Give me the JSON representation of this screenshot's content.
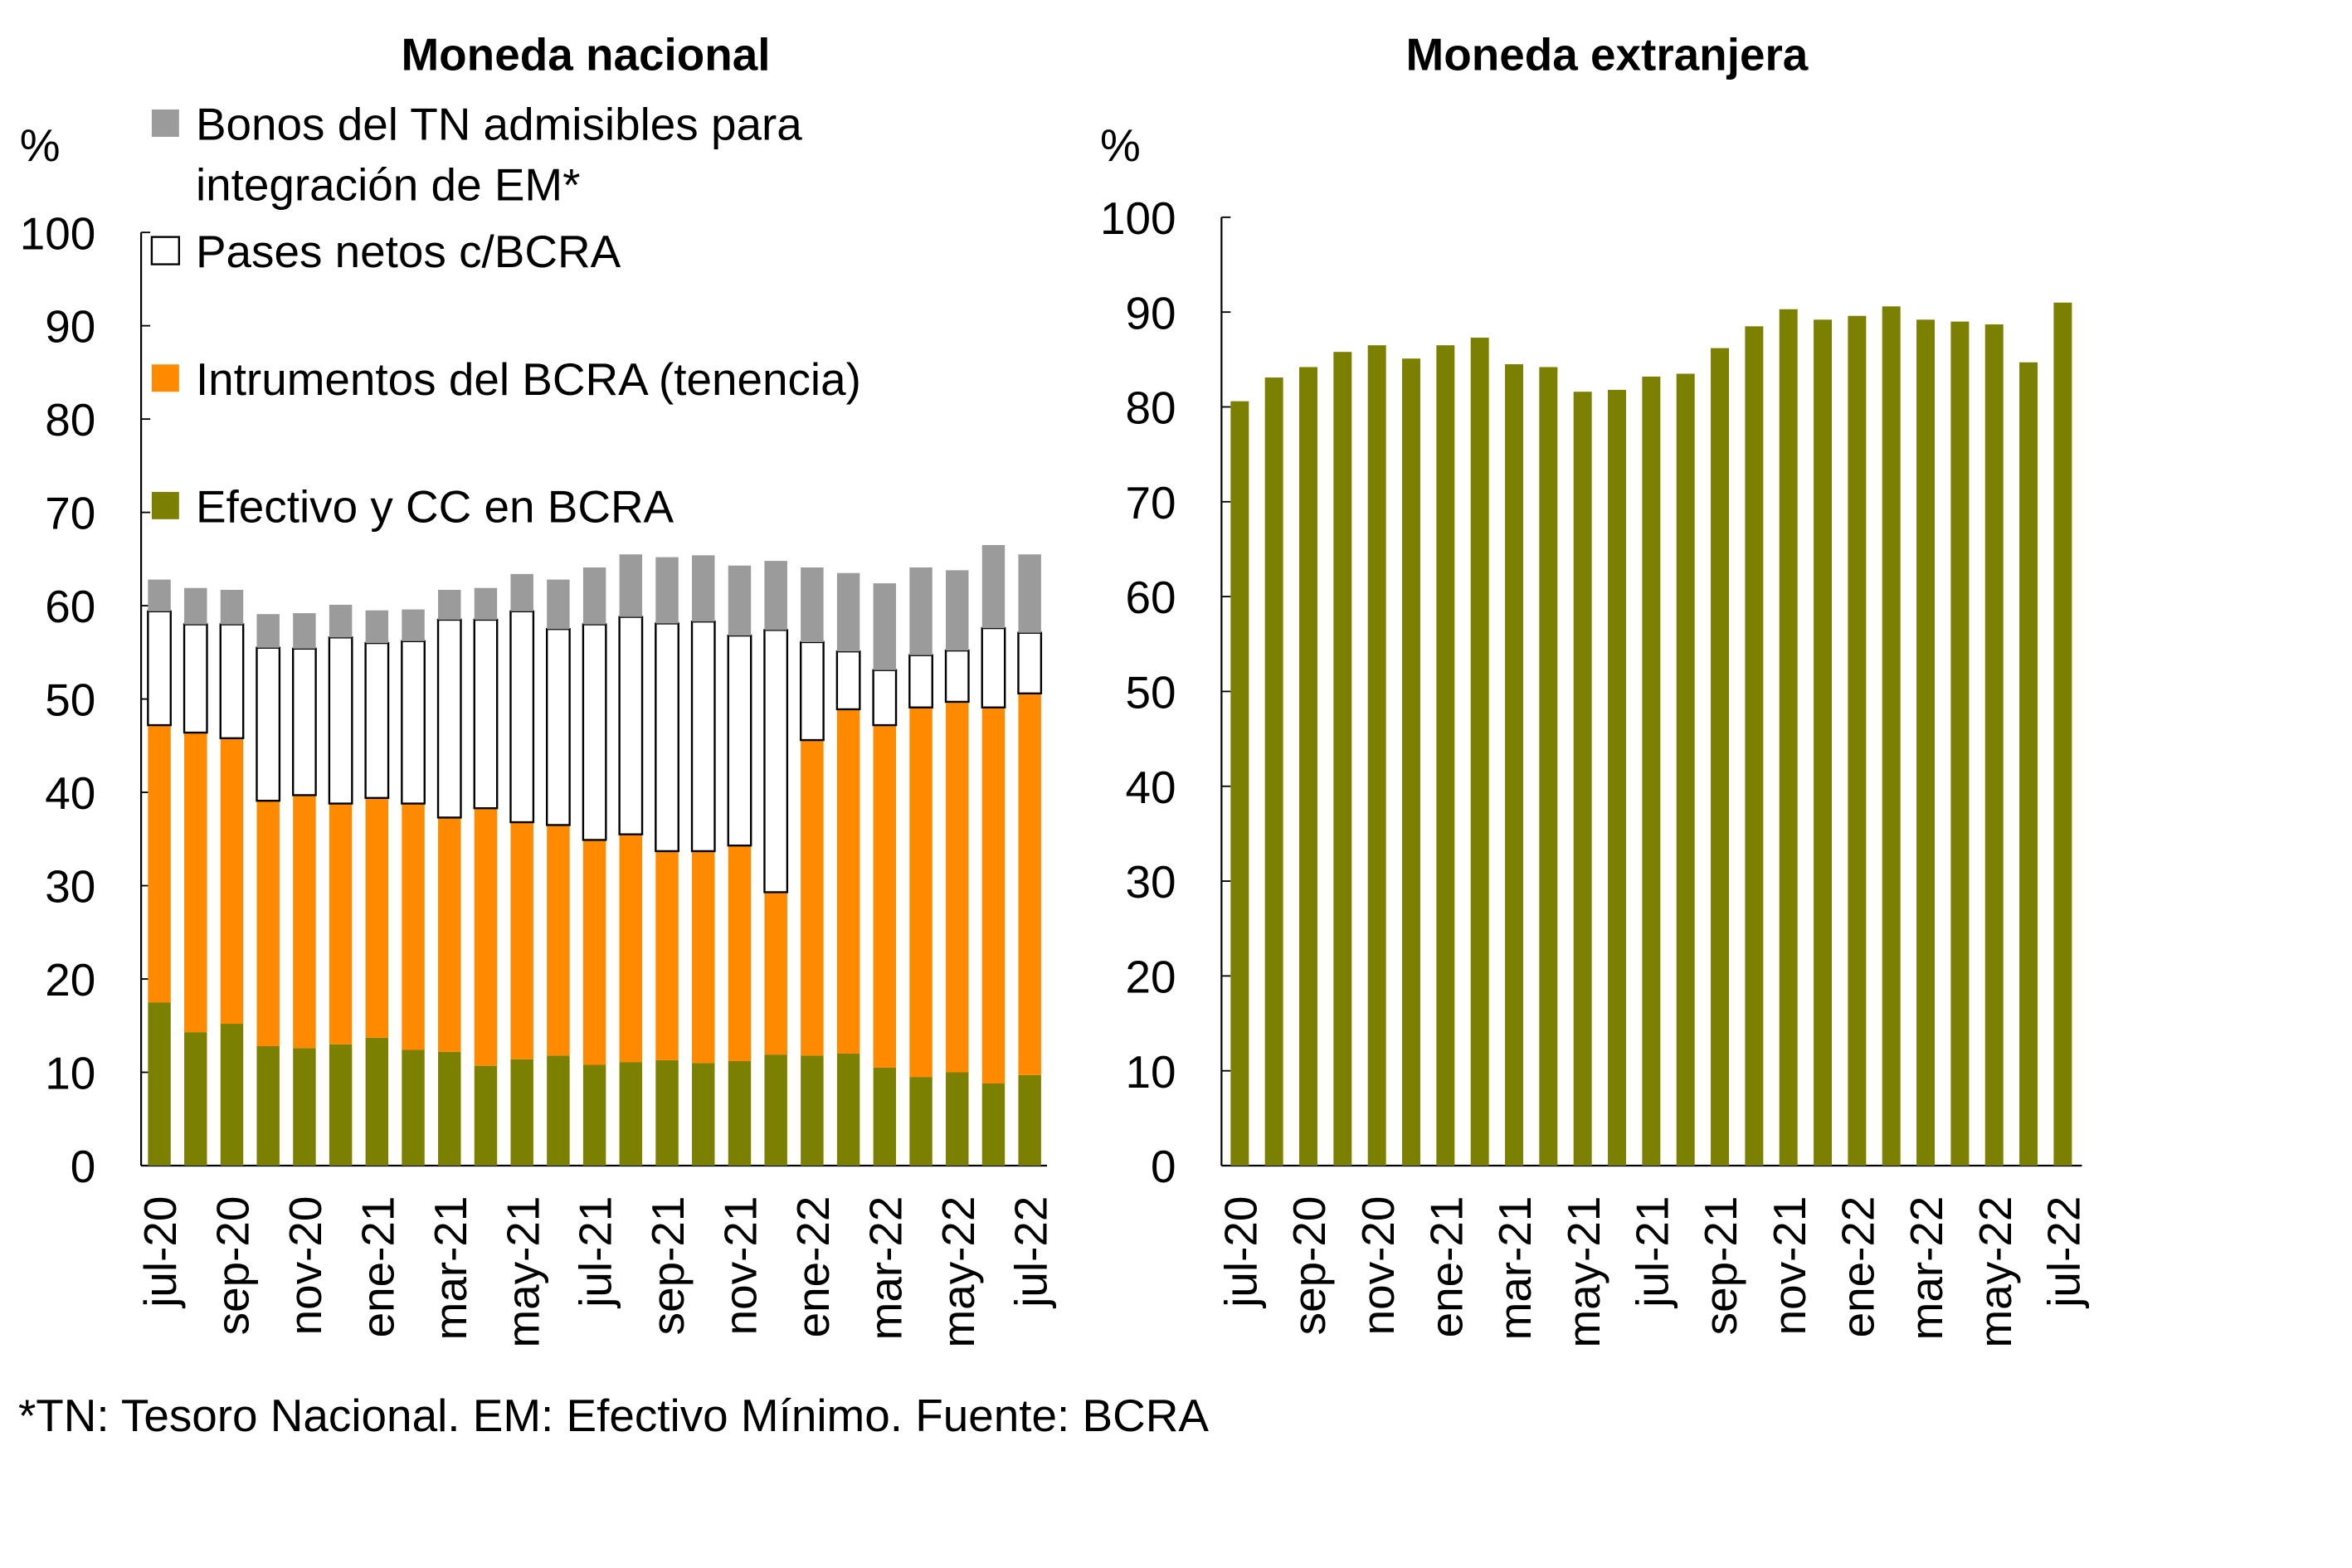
{
  "colors": {
    "efectivo": "#7b8000",
    "instrumentos": "#ff8a00",
    "pases": "#ffffff",
    "bonos": "#9b9b9b"
  },
  "chart_data": [
    {
      "type": "bar",
      "stacked": true,
      "title": "Moneda nacional",
      "ylabel": "%",
      "ylim": [
        0,
        100
      ],
      "yticks": [
        0,
        10,
        20,
        30,
        40,
        50,
        60,
        70,
        80,
        90,
        100
      ],
      "categories": [
        "jul-20",
        "ago-20",
        "sep-20",
        "oct-20",
        "nov-20",
        "dic-20",
        "ene-21",
        "feb-21",
        "mar-21",
        "abr-21",
        "may-21",
        "jun-21",
        "jul-21",
        "ago-21",
        "sep-21",
        "oct-21",
        "nov-21",
        "dic-21",
        "ene-22",
        "feb-22",
        "mar-22",
        "abr-22",
        "may-22",
        "jun-22",
        "jul-22"
      ],
      "xtick_labels": [
        "jul-20",
        "sep-20",
        "nov-20",
        "ene-21",
        "mar-21",
        "may-21",
        "jul-21",
        "sep-21",
        "nov-21",
        "ene-22",
        "mar-22",
        "may-22",
        "jul-22"
      ],
      "legend": "top-left",
      "series": [
        {
          "name": "Efectivo y CC en BCRA",
          "color_key": "efectivo",
          "values": [
            17.5,
            14.3,
            15.2,
            12.8,
            12.6,
            13.0,
            13.7,
            12.4,
            12.2,
            10.7,
            11.4,
            11.8,
            10.8,
            11.1,
            11.3,
            11.0,
            11.2,
            11.9,
            11.8,
            12.0,
            10.5,
            9.5,
            10.0,
            8.8,
            9.7
          ]
        },
        {
          "name": "Intrumentos del BCRA (tenencia)",
          "color_key": "instrumentos",
          "values": [
            29.7,
            32.1,
            30.6,
            26.3,
            27.1,
            25.8,
            25.7,
            26.4,
            25.1,
            27.6,
            25.4,
            24.7,
            24.1,
            24.4,
            22.4,
            22.7,
            23.1,
            17.4,
            33.8,
            36.9,
            36.7,
            39.6,
            39.7,
            40.3,
            40.9
          ]
        },
        {
          "name": "Pases netos c/BCRA",
          "color_key": "pases",
          "values": [
            12.2,
            11.6,
            12.2,
            16.4,
            15.7,
            17.8,
            16.6,
            17.4,
            21.2,
            20.2,
            22.6,
            21.0,
            23.1,
            23.3,
            24.4,
            24.6,
            22.5,
            28.1,
            10.5,
            6.2,
            5.9,
            5.6,
            5.5,
            8.5,
            6.5
          ]
        },
        {
          "name": "Bonos del TN admisibles para integración de EM*",
          "name_lines": [
            "Bonos del TN admisibles para",
            "integración de EM*"
          ],
          "color_key": "bonos",
          "values": [
            3.4,
            3.9,
            3.7,
            3.6,
            3.8,
            3.5,
            3.5,
            3.4,
            3.2,
            3.4,
            4.0,
            5.3,
            6.1,
            6.7,
            7.1,
            7.1,
            7.5,
            7.4,
            8.0,
            8.4,
            9.3,
            9.4,
            8.6,
            8.9,
            8.4
          ]
        }
      ]
    },
    {
      "type": "bar",
      "title": "Moneda extranjera",
      "ylabel": "%",
      "ylim": [
        0,
        100
      ],
      "yticks": [
        0,
        10,
        20,
        30,
        40,
        50,
        60,
        70,
        80,
        90,
        100
      ],
      "categories": [
        "jul-20",
        "ago-20",
        "sep-20",
        "oct-20",
        "nov-20",
        "dic-20",
        "ene-21",
        "feb-21",
        "mar-21",
        "abr-21",
        "may-21",
        "jun-21",
        "jul-21",
        "ago-21",
        "sep-21",
        "oct-21",
        "nov-21",
        "dic-21",
        "ene-22",
        "feb-22",
        "mar-22",
        "abr-22",
        "may-22",
        "jun-22",
        "jul-22"
      ],
      "xtick_labels": [
        "jul-20",
        "sep-20",
        "nov-20",
        "ene-21",
        "mar-21",
        "may-21",
        "jul-21",
        "sep-21",
        "nov-21",
        "ene-22",
        "mar-22",
        "may-22",
        "jul-22"
      ],
      "series": [
        {
          "name": "Efectivo y CC en BCRA",
          "color_key": "efectivo",
          "values": [
            80.6,
            83.1,
            84.2,
            85.8,
            86.5,
            85.1,
            86.5,
            87.3,
            84.5,
            84.2,
            81.6,
            81.8,
            83.2,
            83.5,
            86.2,
            88.5,
            90.3,
            89.2,
            89.6,
            90.6,
            89.2,
            89.0,
            88.7,
            84.7,
            91.0
          ]
        }
      ]
    }
  ],
  "footnote": "*TN: Tesoro Nacional. EM: Efectivo Mínimo. Fuente: BCRA"
}
